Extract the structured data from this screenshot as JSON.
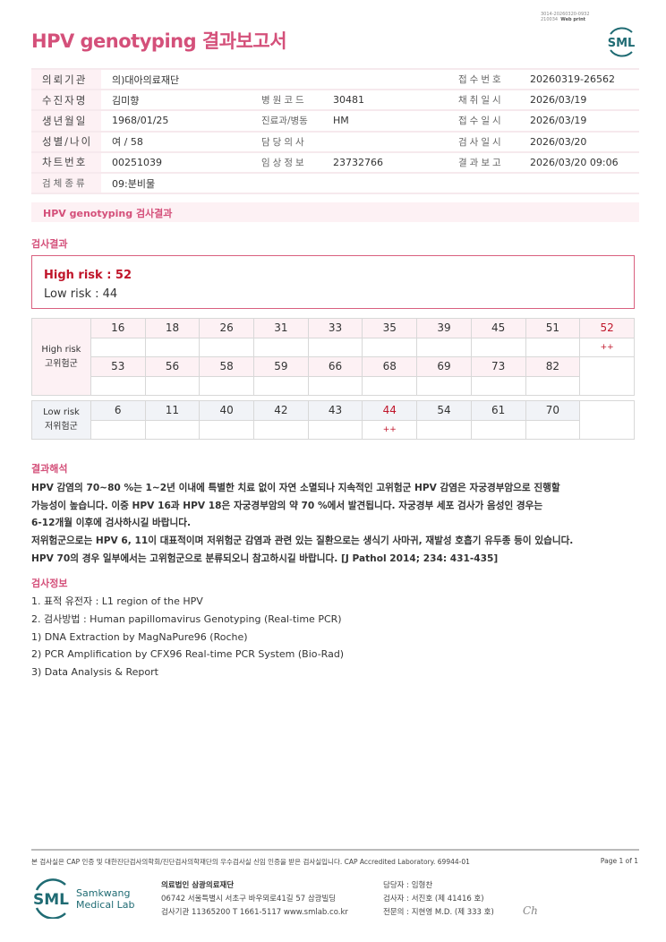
{
  "header": {
    "title": "HPV genotyping 결과보고서",
    "print_id_line1": "3014-20260320-0932",
    "print_id_line2": "210034",
    "print_mode": "Web print",
    "logo_text": "SML",
    "brand_color": "#d4507a"
  },
  "patient_info": {
    "rows": [
      [
        {
          "label": "의뢰기관",
          "value": "의)대아의료재단"
        },
        {
          "label": "",
          "value": ""
        },
        {
          "label": "접수번호",
          "value": "20260319-26562"
        }
      ],
      [
        {
          "label": "수진자명",
          "value": "김미향"
        },
        {
          "label": "병원코드",
          "value": "30481"
        },
        {
          "label": "채취일시",
          "value": "2026/03/19"
        }
      ],
      [
        {
          "label": "생년월일",
          "value": "1968/01/25"
        },
        {
          "label": "진료과/병동",
          "value": "HM"
        },
        {
          "label": "접수일시",
          "value": "2026/03/19"
        }
      ],
      [
        {
          "label": "성별/나이",
          "value": "여 / 58"
        },
        {
          "label": "담당의사",
          "value": ""
        },
        {
          "label": "검사일시",
          "value": "2026/03/20"
        }
      ],
      [
        {
          "label": "차트번호",
          "value": "00251039"
        },
        {
          "label": "임상정보",
          "value": "23732766"
        },
        {
          "label": "결과보고",
          "value": "2026/03/20 09:06"
        }
      ],
      [
        {
          "label": "검체종류",
          "value": "09:분비물"
        }
      ]
    ]
  },
  "result_section": {
    "band_title": "HPV genotyping 검사결과",
    "heading": "검사결과",
    "high_risk_summary": "High risk : 52",
    "low_risk_summary": "Low risk : 44"
  },
  "genotype_table": {
    "high_label_en": "High risk",
    "high_label_ko": "고위험군",
    "high_row1": [
      "16",
      "18",
      "26",
      "31",
      "33",
      "35",
      "39",
      "45",
      "51",
      "52"
    ],
    "high_row1_results": [
      "",
      "",
      "",
      "",
      "",
      "",
      "",
      "",
      "",
      "++"
    ],
    "high_row2": [
      "53",
      "56",
      "58",
      "59",
      "66",
      "68",
      "69",
      "73",
      "82"
    ],
    "high_row2_results": [
      "",
      "",
      "",
      "",
      "",
      "",
      "",
      "",
      ""
    ],
    "low_label_en": "Low risk",
    "low_label_ko": "저위험군",
    "low_row": [
      "6",
      "11",
      "40",
      "42",
      "43",
      "44",
      "54",
      "61",
      "70"
    ],
    "low_row_results": [
      "",
      "",
      "",
      "",
      "",
      "++",
      "",
      "",
      ""
    ],
    "positive_color": "#c0152a"
  },
  "interpretation": {
    "heading": "결과해석",
    "lines": [
      "HPV 감염의 70~80 %는 1~2년 이내에 특별한 치료 없이 자연 소멸되나 지속적인 고위험군 HPV 감염은 자궁경부암으로 진행할",
      "가능성이 높습니다. 이중 HPV 16과 HPV 18은 자궁경부암의 약 70 %에서 발견됩니다. 자궁경부 세포 검사가 음성인 경우는",
      "6-12개월 이후에 검사하시길 바랍니다.",
      "저위험군으로는 HPV 6, 11이 대표적이며 저위험군 감염과 관련 있는 질환으로는 생식기 사마귀, 재발성 호흡기 유두종 등이 있습니다.",
      "HPV 70의 경우 일부에서는 고위험군으로 분류되오니 참고하시길 바랍니다. [J Pathol 2014; 234: 431-435]"
    ]
  },
  "test_info": {
    "heading": "검사정보",
    "lines": [
      "1. 표적 유전자 : L1 region of the HPV",
      "2. 검사방법 : Human papillomavirus Genotyping (Real-time PCR)",
      "1) DNA Extraction by MagNaPure96 (Roche)",
      "2) PCR Amplification by CFX96 Real-time PCR System (Bio-Rad)",
      "3) Data Analysis & Report"
    ]
  },
  "footer": {
    "accreditation": "본 검사실은 CAP 인증 및 대한진단검사의학회/진단검사의학재단의 우수검사실 신임 인증을 받은 검사실입니다.  CAP Accredited Laboratory. 69944-01",
    "page": "Page 1 of 1",
    "logo_text": "SML",
    "logo_name_1": "Samkwang",
    "logo_name_2": "Medical Lab",
    "org_name": "의료법인 삼광의료재단",
    "address": "06742 서울특별시 서초구 바우뫼로41길 57 삼광빌딩",
    "contact": "검사기관 11365200  T 1661-5117  www.smlab.co.kr",
    "staff": [
      "담당자 :  임형찬",
      "검사자 :  서진호 (제 41416 호)",
      "전문의 :  지현영 M.D. (제 333 호)"
    ],
    "signature": "Ch",
    "logo_color": "#1f6b73"
  }
}
